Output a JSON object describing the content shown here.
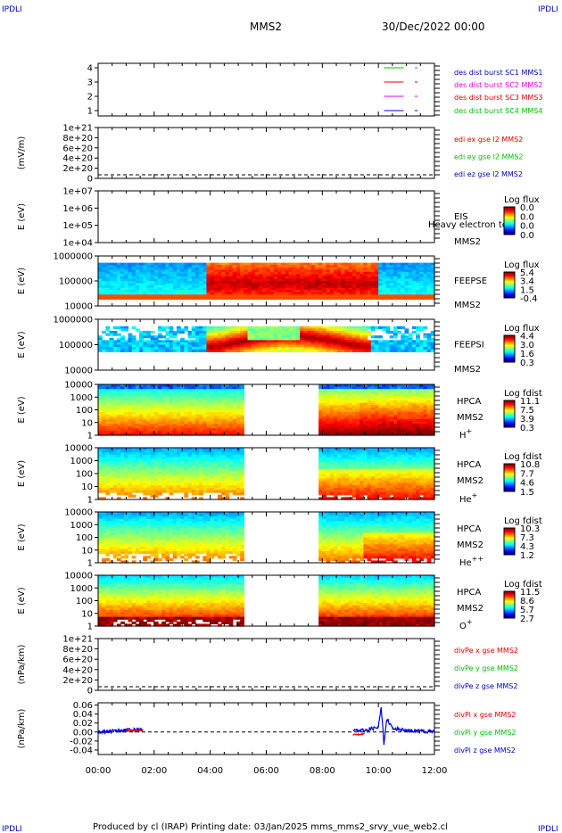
{
  "header": {
    "corner_tl": "IPDLI",
    "corner_tr": "IPDLI",
    "corner_bl": "IPDLI",
    "corner_br": "IPDLI",
    "spacecraft": "MMS2",
    "date_time": "30/Dec/2022 00:00"
  },
  "footer": {
    "text": "Produced by cl (IRAP)   Printing date: 03/Jan/2025   mms_mms2_srvy_vue_web2.cl"
  },
  "colors": {
    "green": "#00c000",
    "red": "#e00000",
    "magenta": "#e000e0",
    "blue": "#0000e0",
    "label_blue": "#0000c0"
  },
  "chart_data": [
    {
      "type": "line",
      "panel": "burst",
      "yticks": [
        "1",
        "2",
        "3",
        "4"
      ],
      "ylim": [
        0.5,
        4.5
      ],
      "legend": [
        {
          "name": "des dist burst SC1 MMS1",
          "color": "#0000c0"
        },
        {
          "name": "des dist burst SC2 MMS2",
          "color": "#e000e0"
        },
        {
          "name": "des dist burst SC3 MMS3",
          "color": "#e00000"
        },
        {
          "name": "des dist burst SC4 MMS4",
          "color": "#00c000"
        }
      ],
      "series": [
        {
          "sc": 4,
          "color": "#00c000",
          "segments": [
            [
              10.2,
              10.9
            ],
            [
              11.3,
              11.4
            ]
          ]
        },
        {
          "sc": 3,
          "color": "#e00000",
          "segments": [
            [
              10.2,
              10.9
            ],
            [
              11.3,
              11.4
            ]
          ]
        },
        {
          "sc": 2,
          "color": "#e000e0",
          "segments": [
            [
              10.2,
              10.9
            ],
            [
              11.3,
              11.4
            ]
          ]
        },
        {
          "sc": 1,
          "color": "#0000e0",
          "segments": [
            [
              10.2,
              10.9
            ],
            [
              11.3,
              11.4
            ]
          ]
        }
      ]
    },
    {
      "type": "line",
      "panel": "edi",
      "ylabel": "(mV/m)",
      "yticks": [
        "0",
        "2e+20",
        "4e+20",
        "6e+20",
        "8e+20",
        "1e+21"
      ],
      "ylim": [
        0,
        1e+21
      ],
      "legend": [
        {
          "name": "edi ex gse l2 MMS2",
          "color": "#e00000"
        },
        {
          "name": "edi ey gse l2 MMS2",
          "color": "#00c000"
        },
        {
          "name": "edi ez gse l2 MMS2",
          "color": "#0000c0"
        }
      ]
    },
    {
      "type": "heatmap",
      "panel": "EIS",
      "ylabel": "E (eV)",
      "yticks": [
        "1e+04",
        "1e+05",
        "1e+06",
        "1e+07"
      ],
      "labels": [
        "EIS",
        "MMS2"
      ],
      "overlay_text": "Heavy electron to",
      "colorbar": {
        "title": "Log flux",
        "ticks": [
          "0.0",
          "0.0",
          "0.0",
          "0.0"
        ]
      }
    },
    {
      "type": "heatmap",
      "panel": "FEEPSE",
      "ylabel": "E (eV)",
      "yticks": [
        "10000",
        "100000",
        "1000000"
      ],
      "labels": [
        "FEEPSE",
        "MMS2"
      ],
      "colorbar": {
        "title": "Log flux",
        "ticks": [
          "5.4",
          "3.4",
          "1.5",
          "-0.4"
        ]
      }
    },
    {
      "type": "heatmap",
      "panel": "FEEPSI",
      "ylabel": "E (eV)",
      "yticks": [
        "10000",
        "100000",
        "1000000"
      ],
      "labels": [
        "FEEPSI",
        "MMS2"
      ],
      "colorbar": {
        "title": "Log flux",
        "ticks": [
          "4.4",
          "3.0",
          "1.6",
          "0.3"
        ]
      }
    },
    {
      "type": "heatmap",
      "panel": "HPCA H+",
      "ylabel": "E (eV)",
      "yticks": [
        "1",
        "10",
        "100",
        "1000",
        "10000"
      ],
      "labels": [
        "HPCA",
        "MMS2",
        "H+"
      ],
      "colorbar": {
        "title": "Log fdist",
        "ticks": [
          "11.1",
          "7.5",
          "3.9",
          "0.3"
        ]
      }
    },
    {
      "type": "heatmap",
      "panel": "HPCA He+",
      "ylabel": "E (eV)",
      "yticks": [
        "1",
        "10",
        "100",
        "1000",
        "10000"
      ],
      "labels": [
        "HPCA",
        "MMS2",
        "He+"
      ],
      "colorbar": {
        "title": "Log fdist",
        "ticks": [
          "10.8",
          "7.7",
          "4.6",
          "1.5"
        ]
      }
    },
    {
      "type": "heatmap",
      "panel": "HPCA He++",
      "ylabel": "E (eV)",
      "yticks": [
        "1",
        "10",
        "100",
        "1000",
        "10000"
      ],
      "labels": [
        "HPCA",
        "MMS2",
        "He++"
      ],
      "colorbar": {
        "title": "Log fdist",
        "ticks": [
          "10.3",
          "7.3",
          "4.3",
          "1.2"
        ]
      }
    },
    {
      "type": "heatmap",
      "panel": "HPCA O+",
      "ylabel": "E (eV)",
      "yticks": [
        "1",
        "10",
        "100",
        "1000",
        "10000"
      ],
      "labels": [
        "HPCA",
        "MMS2",
        "O+"
      ],
      "colorbar": {
        "title": "Log fdist",
        "ticks": [
          "11.5",
          "8.6",
          "5.7",
          "2.7"
        ]
      }
    },
    {
      "type": "line",
      "panel": "divPe",
      "ylabel": "(nPa/km)",
      "yticks": [
        "0",
        "2e+20",
        "4e+20",
        "6e+20",
        "8e+20",
        "1e+21"
      ],
      "ylim": [
        0,
        1e+21
      ],
      "legend": [
        {
          "name": "divPe x gse MMS2",
          "color": "#e00000"
        },
        {
          "name": "divPe y gse MMS2",
          "color": "#00c000"
        },
        {
          "name": "divPe z gse MMS2",
          "color": "#0000c0"
        }
      ]
    },
    {
      "type": "line",
      "panel": "divPi",
      "ylabel": "(nPa/km)",
      "yticks": [
        "-0.04",
        "-0.02",
        "0.00",
        "0.02",
        "0.04",
        "0.06"
      ],
      "ylim": [
        -0.05,
        0.065
      ],
      "legend": [
        {
          "name": "divPi x gse MMS2",
          "color": "#e00000"
        },
        {
          "name": "divPi y gse MMS2",
          "color": "#00c000"
        },
        {
          "name": "divPi z gse MMS2",
          "color": "#0000c0"
        }
      ],
      "series": [
        {
          "name": "z",
          "color": "#0000e0",
          "x": [
            0.0,
            0.5,
            1.0,
            1.6,
            9.1,
            9.6,
            10.0,
            10.1,
            10.2,
            10.3,
            10.5,
            11.0,
            11.5,
            12.0
          ],
          "y": [
            0.0,
            0.002,
            0.004,
            0.006,
            0.003,
            0.004,
            0.012,
            0.055,
            -0.025,
            0.03,
            0.008,
            0.004,
            0.002,
            0.0
          ]
        },
        {
          "name": "x",
          "color": "#e00000",
          "x": [
            1.0,
            1.6,
            9.1,
            9.5
          ],
          "y": [
            0.003,
            0.004,
            -0.006,
            -0.004
          ]
        }
      ]
    }
  ],
  "time_axis": {
    "ticks": [
      "00:00",
      "02:00",
      "04:00",
      "06:00",
      "08:00",
      "10:00",
      "12:00"
    ],
    "range_hours": [
      0,
      12
    ]
  }
}
